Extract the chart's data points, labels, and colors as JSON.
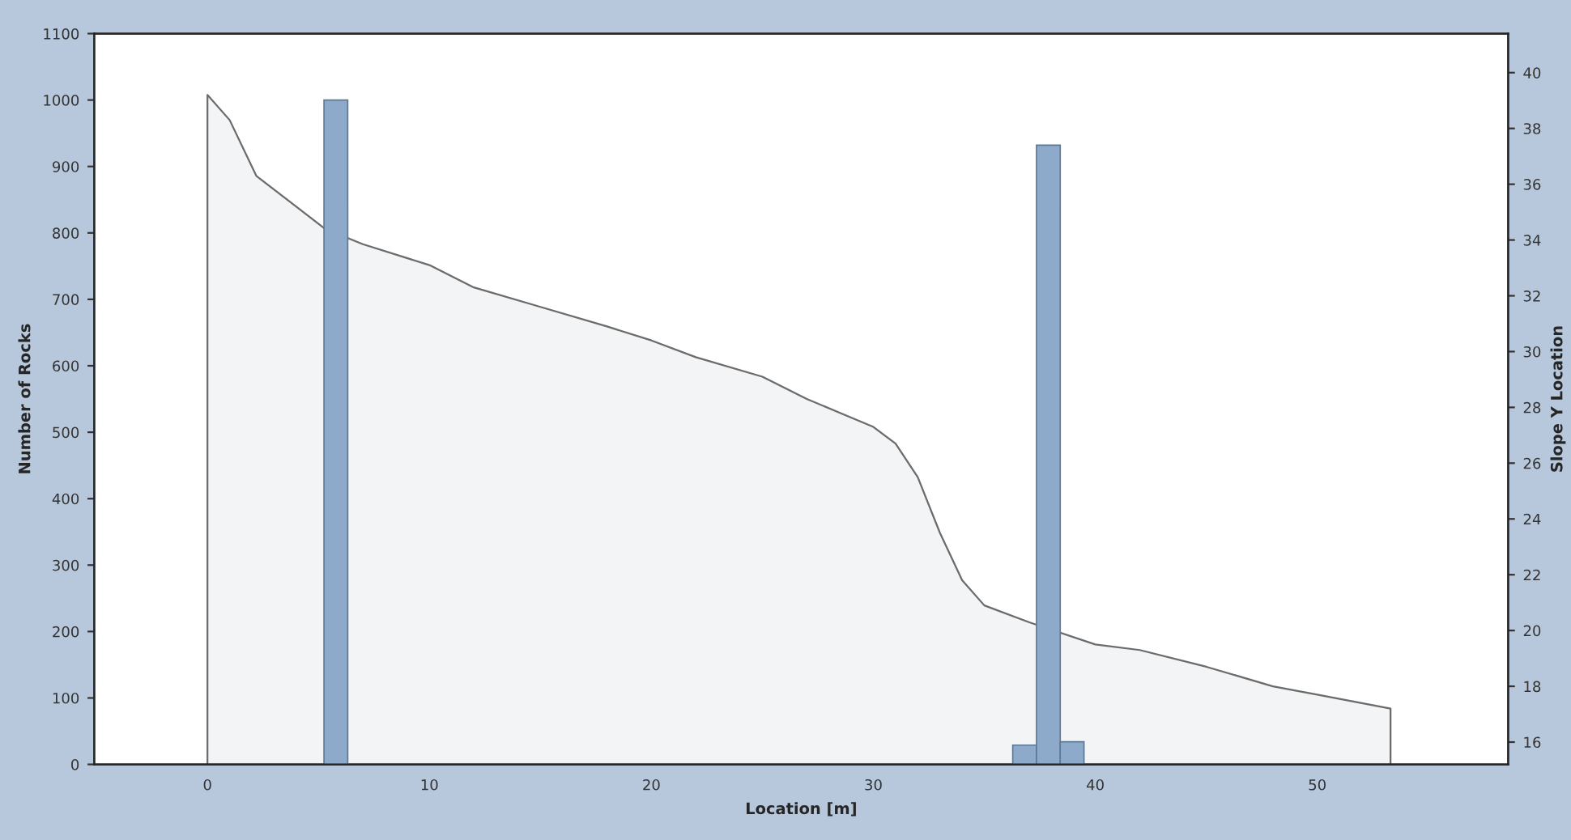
{
  "chart_data": {
    "type": "histogram",
    "xlabel": "Location [m]",
    "ylabel": "Number of Rocks",
    "y2label": "Slope Y Location",
    "bins": [
      5.25,
      6.32,
      7.39,
      8.46,
      9.53,
      10.6,
      11.67,
      12.74,
      13.81,
      14.88,
      15.95,
      17.02,
      18.09,
      19.16,
      20.23,
      21.3,
      22.37,
      23.44,
      24.51,
      25.58,
      26.65,
      27.72,
      28.79,
      29.86,
      30.93,
      32.0,
      33.07,
      34.14,
      35.21,
      36.28,
      37.35,
      38.42,
      39.49
    ],
    "values": [
      1000,
      0,
      0,
      0,
      0,
      0,
      0,
      0,
      0,
      0,
      0,
      0,
      0,
      0,
      0,
      0,
      0,
      0,
      0,
      0,
      0,
      0,
      0,
      0,
      0,
      0,
      0,
      0,
      0,
      29,
      932,
      34
    ],
    "color": "#8eaacb",
    "series": [
      {
        "type": "area",
        "axis": "y2",
        "color": "#f3f4f6",
        "x": [
          0,
          1,
          2.2,
          5.3,
          7,
          10,
          12,
          15,
          18,
          20,
          22,
          25,
          27,
          30,
          31,
          32,
          33,
          34,
          35,
          37,
          40,
          42,
          45,
          48,
          50,
          53.3
        ],
        "values": [
          39.2,
          38.3,
          36.3,
          34.4,
          33.85,
          33.1,
          32.3,
          31.6,
          30.9,
          30.4,
          29.8,
          29.1,
          28.3,
          27.3,
          26.7,
          25.5,
          23.5,
          21.8,
          20.9,
          20.3,
          19.5,
          19.3,
          18.7,
          18.0,
          17.7,
          17.2
        ]
      }
    ],
    "xlim": [
      -5.1,
      58.6
    ],
    "xticks": [
      0,
      10,
      20,
      30,
      40,
      50
    ],
    "ylim": [
      0,
      1100
    ],
    "yticks": [
      0,
      100,
      200,
      300,
      400,
      500,
      600,
      700,
      800,
      900,
      1000,
      1100
    ],
    "y2lim": [
      15.2,
      41.4
    ],
    "y2ticks": [
      16,
      18,
      20,
      22,
      24,
      26,
      28,
      30,
      32,
      34,
      36,
      38,
      40
    ]
  }
}
